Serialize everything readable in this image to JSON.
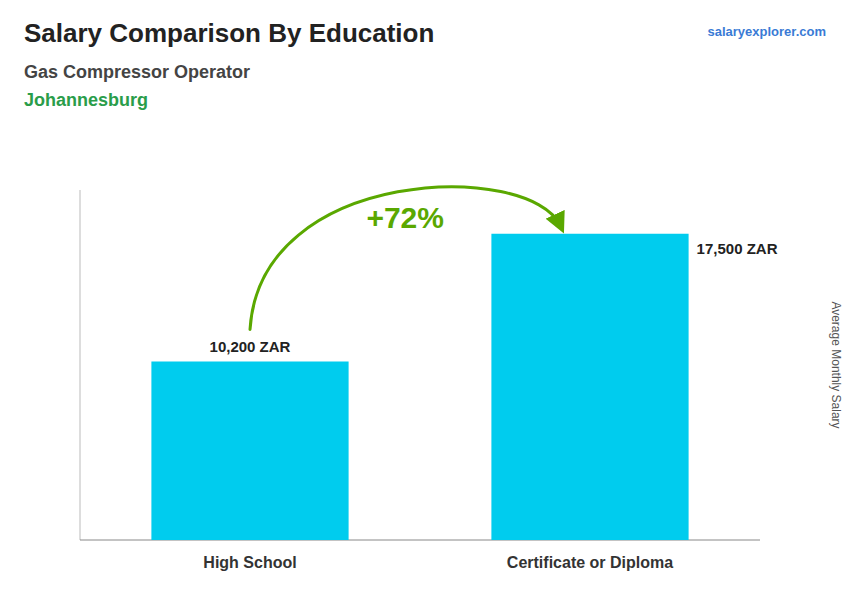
{
  "chart_data": {
    "type": "bar",
    "title": "Salary Comparison By Education",
    "subtitle": "Gas Compressor Operator",
    "annotations": [
      "Johannesburg",
      "+72%",
      "salaryexplorer.com"
    ],
    "ylabel": "Average Monthly Salary",
    "categories": [
      "High School",
      "Certificate or Diploma"
    ],
    "values": [
      10200,
      17500
    ],
    "value_labels": [
      "10,200 ZAR",
      "17,500 ZAR"
    ],
    "data_labels": true,
    "color": "#00ccee",
    "ylim": [
      0,
      20000
    ],
    "tick_labels": false
  }
}
